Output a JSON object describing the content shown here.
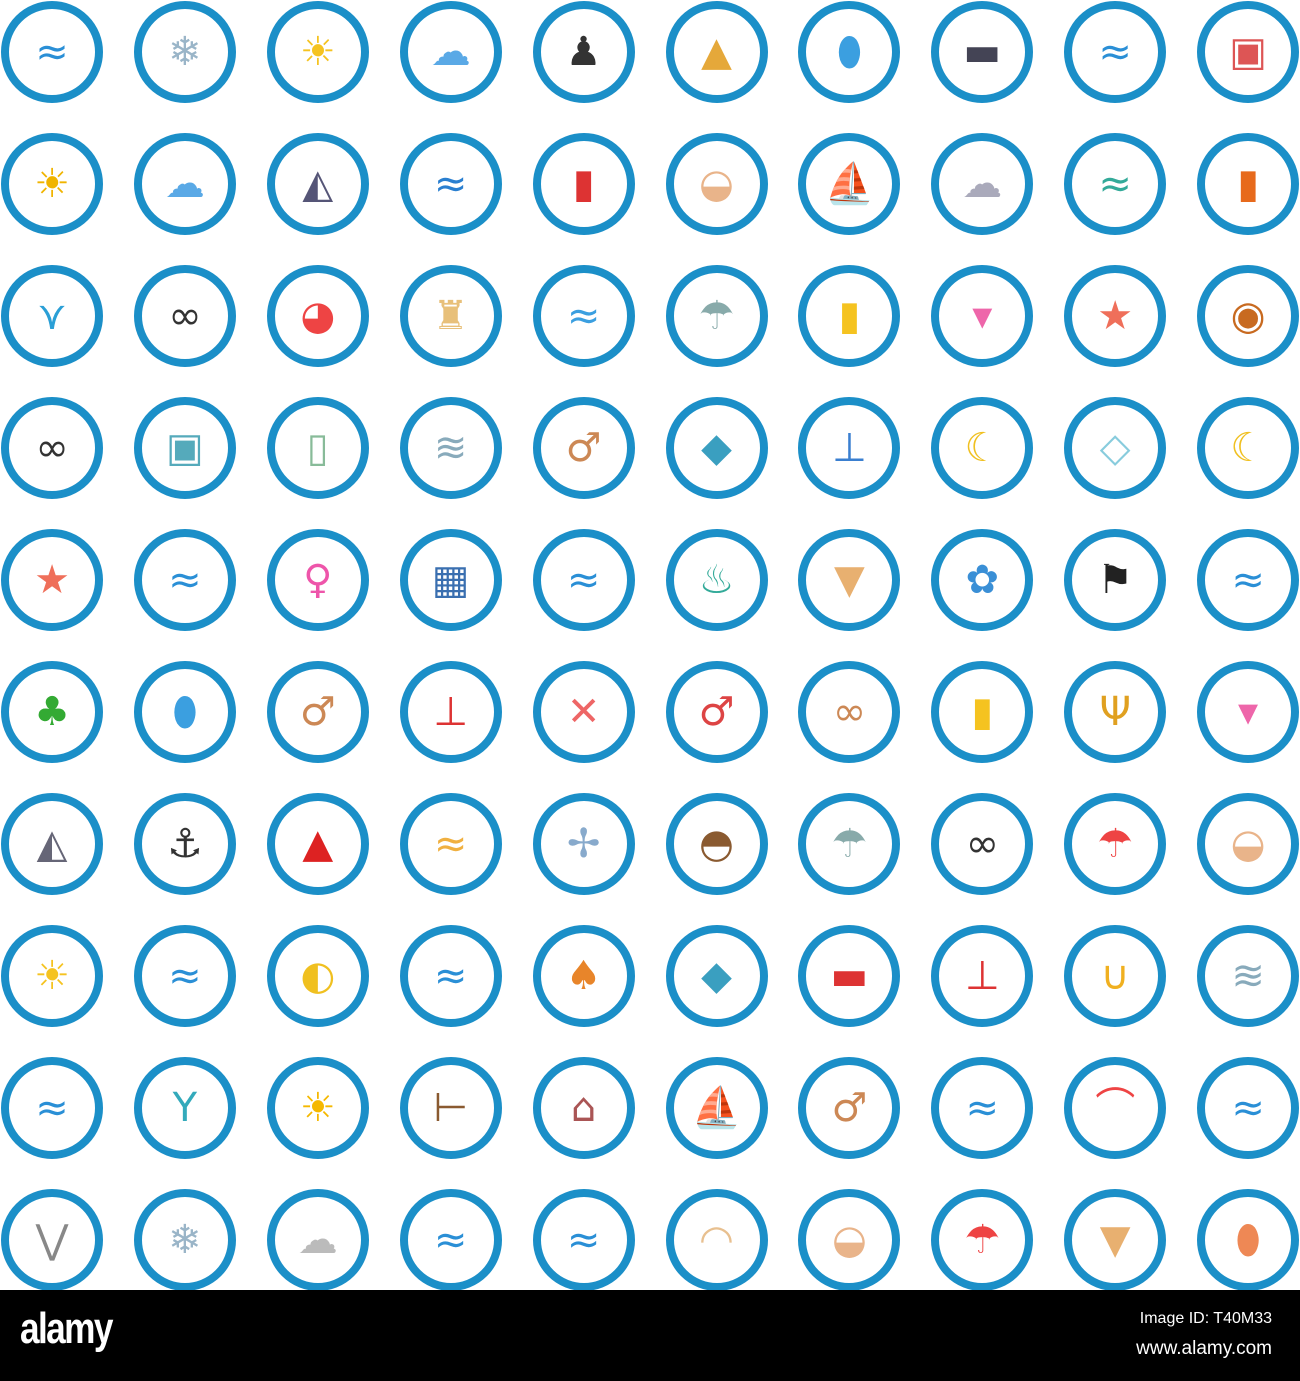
{
  "colors": {
    "ring": "#1b8fc8",
    "footer": "#000000"
  },
  "icons": [
    "wave",
    "snow-cloud",
    "sun",
    "wave-cloud",
    "diver",
    "tent",
    "surfboard",
    "submarine",
    "wave",
    "camera-map",
    "sun-wave",
    "wave-cloud",
    "shark-fin",
    "waves",
    "swim-shorts",
    "seashell",
    "ship",
    "storm-cloud",
    "surfer-wave",
    "life-vest",
    "flippers",
    "sunglasses",
    "beach-ball",
    "sand-castle",
    "water-waves",
    "rain-cloud",
    "sunscreen",
    "sand-bucket",
    "starfish",
    "diving-helmet",
    "sunglasses",
    "photo-palm",
    "bottle-message",
    "wind",
    "surfer",
    "beach-mat",
    "thermometer-cold",
    "moon-cloud",
    "ice",
    "moon-stars",
    "starfish",
    "wave",
    "bikini",
    "cooler",
    "wave",
    "coffee",
    "ice-cream",
    "butterfly",
    "pirate-flag",
    "wave",
    "island",
    "surfboard",
    "surfer",
    "thermometer",
    "surf-club",
    "surfer-man",
    "rope-knot",
    "sunscreen",
    "trident",
    "sand-bucket",
    "shark",
    "anchor",
    "buoy",
    "surfboard-wave",
    "fan",
    "coconut-drink",
    "rain-cloud",
    "sunglasses",
    "beach-umbrella",
    "seashell",
    "sun-cloud",
    "wave",
    "flip-flops",
    "wave",
    "mushrooms",
    "beach-mat",
    "van",
    "thermometer-hot",
    "snorkel",
    "wind",
    "wave",
    "cocktail",
    "summer-sun",
    "signpost",
    "playground",
    "windsurfer",
    "surfer",
    "wave",
    "rainbow",
    "wave",
    "seagull",
    "snow-cloud",
    "fog-cloud",
    "wave",
    "wave",
    "sun-hat",
    "seashell",
    "beach-umbrella",
    "ice-cream",
    "surfboards"
  ],
  "footer": {
    "logo": "alamy",
    "image_id": "Image ID: T40M33",
    "site": "www.alamy.com"
  }
}
